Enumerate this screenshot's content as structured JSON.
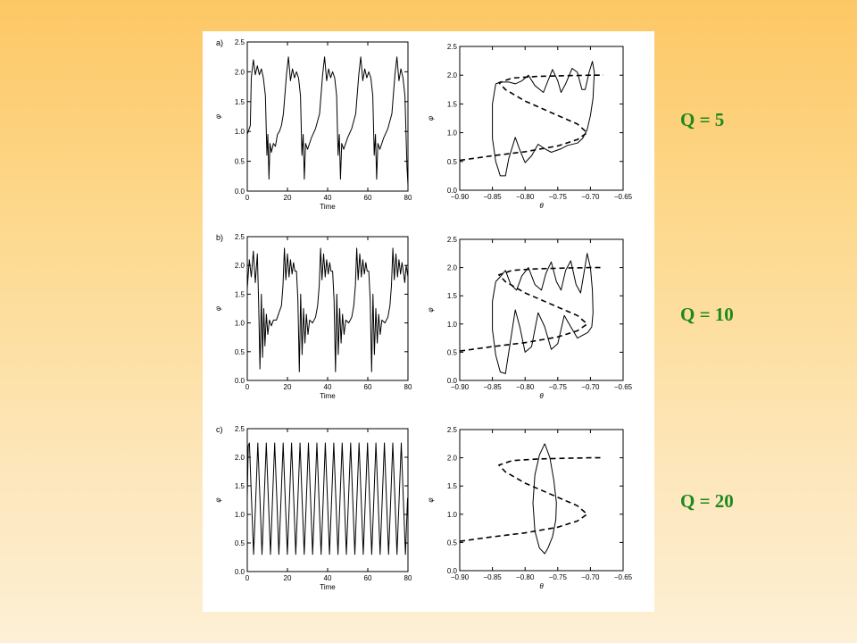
{
  "labels": {
    "q5": "Q = 5",
    "q10": "Q = 10",
    "q20": "Q = 20"
  },
  "colors": {
    "background_top": "#fdc765",
    "background_bottom": "#fdf0d6",
    "label_green": "#1b8a1b",
    "figure_bg": "#ffffff",
    "ink": "#000000"
  },
  "chart_data": [
    {
      "panel": "a) time series",
      "type": "line",
      "panel_label": "a)",
      "xlabel": "Time",
      "ylabel": "φ",
      "xlim": [
        0,
        80
      ],
      "ylim": [
        0,
        2.5
      ],
      "xticks": [
        "0",
        "20",
        "40",
        "60",
        "80"
      ],
      "yticks": [
        "0.0",
        "0.5",
        "1.0",
        "1.5",
        "2.0",
        "2.5"
      ],
      "series": [
        {
          "x": [
            0,
            1.5,
            2,
            3,
            4,
            5,
            6,
            7,
            8,
            9,
            9.8,
            10.2,
            10.8,
            11.3,
            12,
            13,
            14,
            15,
            16,
            17,
            18,
            19.5,
            20.5,
            21.5,
            22.5,
            23.5,
            24.5,
            25.5,
            26.5,
            27.2,
            27.8,
            28.4,
            29,
            30,
            32,
            34,
            36,
            37.5,
            38.5,
            39.5,
            40.5,
            41.5,
            42.5,
            43.5,
            44.5,
            45.2,
            45.8,
            46.4,
            47,
            48,
            50,
            52,
            54,
            55.5,
            56.5,
            57.5,
            58.5,
            59.5,
            60.5,
            61.5,
            62.5,
            63.2,
            63.8,
            64.4,
            65,
            66,
            68,
            70,
            72,
            73.5,
            74.5,
            75.5,
            76.5,
            77.5,
            78.5,
            79.5,
            80
          ],
          "y": [
            0.95,
            1.1,
            1.9,
            2.2,
            1.95,
            2.1,
            1.95,
            2.05,
            1.9,
            1.6,
            0.6,
            0.95,
            0.2,
            0.8,
            0.65,
            0.8,
            0.75,
            0.95,
            1.0,
            1.1,
            1.3,
            1.95,
            2.25,
            1.85,
            2.05,
            1.9,
            2.0,
            1.9,
            1.6,
            0.6,
            0.95,
            0.2,
            0.8,
            0.7,
            0.9,
            1.05,
            1.3,
            1.95,
            2.25,
            1.85,
            2.05,
            1.9,
            2.0,
            1.9,
            1.6,
            0.6,
            0.95,
            0.2,
            0.8,
            0.7,
            0.9,
            1.05,
            1.3,
            1.95,
            2.25,
            1.85,
            2.05,
            1.9,
            2.0,
            1.9,
            1.6,
            0.6,
            0.95,
            0.2,
            0.8,
            0.7,
            0.9,
            1.05,
            1.3,
            1.95,
            2.25,
            1.85,
            2.05,
            1.9,
            1.6,
            0.4,
            0.1
          ]
        }
      ]
    },
    {
      "panel": "a) phase portrait",
      "type": "line",
      "xlabel": "θ",
      "ylabel": "φ",
      "xlim": [
        -0.9,
        -0.65
      ],
      "ylim": [
        0,
        2.5
      ],
      "xticks": [
        "−0.90",
        "−0.85",
        "−0.80",
        "−0.75",
        "−0.70",
        "−0.65"
      ],
      "yticks": [
        "0.0",
        "0.5",
        "1.0",
        "1.5",
        "2.0",
        "2.5"
      ],
      "series": [
        {
          "style": "dashed",
          "x": [
            -0.9,
            -0.85,
            -0.8,
            -0.75,
            -0.72,
            -0.705,
            -0.72,
            -0.76,
            -0.8,
            -0.83,
            -0.84,
            -0.82,
            -0.78,
            -0.74,
            -0.7,
            -0.68
          ],
          "y": [
            0.52,
            0.6,
            0.67,
            0.77,
            0.88,
            1.0,
            1.15,
            1.35,
            1.55,
            1.75,
            1.87,
            1.95,
            1.98,
            1.99,
            2.0,
            2.0
          ]
        },
        {
          "style": "solid",
          "x": [
            -0.845,
            -0.85,
            -0.85,
            -0.845,
            -0.838,
            -0.83,
            -0.825,
            -0.815,
            -0.808,
            -0.8,
            -0.79,
            -0.78,
            -0.77,
            -0.76,
            -0.745,
            -0.735,
            -0.72,
            -0.712,
            -0.705,
            -0.7,
            -0.696,
            -0.695,
            -0.694,
            -0.697,
            -0.702,
            -0.708,
            -0.713,
            -0.72,
            -0.728,
            -0.738,
            -0.745,
            -0.75,
            -0.758,
            -0.765,
            -0.772,
            -0.785,
            -0.795,
            -0.805,
            -0.815,
            -0.825,
            -0.833,
            -0.84,
            -0.845
          ],
          "y": [
            1.85,
            1.5,
            0.9,
            0.5,
            0.25,
            0.25,
            0.55,
            0.92,
            0.7,
            0.48,
            0.6,
            0.8,
            0.72,
            0.66,
            0.72,
            0.78,
            0.82,
            0.9,
            1.05,
            1.3,
            1.6,
            1.85,
            2.05,
            2.24,
            2.05,
            1.75,
            1.75,
            2.05,
            2.12,
            1.85,
            1.7,
            1.9,
            2.1,
            1.9,
            1.7,
            1.82,
            2.0,
            1.9,
            1.85,
            1.88,
            1.88,
            1.87,
            1.85
          ]
        }
      ]
    },
    {
      "panel": "b) time series",
      "type": "line",
      "panel_label": "b)",
      "xlabel": "Time",
      "ylabel": "φ",
      "xlim": [
        0,
        80
      ],
      "ylim": [
        0,
        2.5
      ],
      "xticks": [
        "0",
        "20",
        "40",
        "60",
        "80"
      ],
      "yticks": [
        "0.0",
        "0.5",
        "1.0",
        "1.5",
        "2.0",
        "2.5"
      ],
      "series": [
        {
          "x": [
            0,
            1,
            2,
            3,
            4,
            5,
            5.7,
            6.3,
            7,
            7.6,
            8.2,
            8.8,
            9.5,
            10.2,
            11,
            12,
            13,
            14.5,
            16,
            17,
            17.8,
            18.5,
            19.2,
            20,
            20.8,
            21.5,
            22.3,
            23,
            23.7,
            24.5,
            25.2,
            25.9,
            26.6,
            27.3,
            28,
            28.7,
            29.4,
            30.2,
            31,
            32.5,
            34,
            35,
            35.8,
            36.5,
            37.2,
            38,
            38.8,
            39.5,
            40.3,
            41,
            41.7,
            42.5,
            43.2,
            43.9,
            44.6,
            45.3,
            46,
            46.7,
            47.4,
            48.2,
            49,
            50.5,
            52,
            53,
            53.8,
            54.5,
            55.2,
            56,
            56.8,
            57.5,
            58.3,
            59,
            59.7,
            60.5,
            61.2,
            61.9,
            62.6,
            63.3,
            64,
            64.7,
            65.4,
            66.2,
            67,
            68.5,
            70,
            71,
            71.8,
            72.5,
            73.2,
            74,
            74.8,
            75.5,
            76.3,
            77,
            77.7,
            78.4,
            79.1,
            80
          ],
          "y": [
            1.6,
            2.1,
            1.8,
            2.25,
            1.7,
            2.2,
            1.3,
            0.2,
            1.5,
            0.4,
            1.25,
            0.6,
            1.15,
            0.8,
            1.05,
            0.95,
            1.05,
            1.05,
            1.2,
            1.3,
            1.65,
            2.3,
            1.75,
            2.2,
            1.8,
            2.1,
            1.85,
            2.05,
            1.9,
            1.9,
            1.4,
            0.15,
            1.5,
            0.45,
            1.25,
            0.65,
            1.15,
            0.8,
            1.05,
            1.0,
            1.1,
            1.3,
            1.65,
            2.3,
            1.75,
            2.2,
            1.8,
            2.1,
            1.85,
            2.05,
            1.9,
            1.9,
            1.4,
            0.15,
            1.5,
            0.45,
            1.25,
            0.65,
            1.15,
            0.8,
            1.05,
            1.0,
            1.1,
            1.3,
            1.65,
            2.3,
            1.75,
            2.2,
            1.8,
            2.1,
            1.85,
            2.05,
            1.9,
            1.9,
            1.4,
            0.15,
            1.5,
            0.45,
            1.25,
            0.65,
            1.15,
            0.8,
            1.05,
            1.0,
            1.1,
            1.3,
            1.65,
            2.3,
            1.75,
            2.2,
            1.8,
            2.1,
            1.85,
            2.05,
            1.9,
            1.7,
            2.0,
            1.8
          ]
        }
      ]
    },
    {
      "panel": "b) phase portrait",
      "type": "line",
      "xlabel": "θ",
      "ylabel": "φ",
      "xlim": [
        -0.9,
        -0.65
      ],
      "ylim": [
        0,
        2.5
      ],
      "xticks": [
        "−0.90",
        "−0.85",
        "−0.80",
        "−0.75",
        "−0.70",
        "−0.65"
      ],
      "yticks": [
        "0.0",
        "0.5",
        "1.0",
        "1.5",
        "2.0",
        "2.5"
      ],
      "series": [
        {
          "style": "dashed",
          "x": [
            -0.9,
            -0.85,
            -0.8,
            -0.75,
            -0.72,
            -0.705,
            -0.72,
            -0.76,
            -0.8,
            -0.83,
            -0.84,
            -0.82,
            -0.78,
            -0.74,
            -0.7,
            -0.68
          ],
          "y": [
            0.52,
            0.6,
            0.67,
            0.77,
            0.88,
            1.0,
            1.15,
            1.35,
            1.55,
            1.75,
            1.87,
            1.95,
            1.98,
            1.99,
            2.0,
            2.0
          ]
        },
        {
          "style": "solid",
          "x": [
            -0.845,
            -0.85,
            -0.85,
            -0.845,
            -0.838,
            -0.83,
            -0.825,
            -0.815,
            -0.808,
            -0.8,
            -0.79,
            -0.78,
            -0.77,
            -0.76,
            -0.75,
            -0.74,
            -0.73,
            -0.72,
            -0.712,
            -0.704,
            -0.698,
            -0.696,
            -0.697,
            -0.7,
            -0.705,
            -0.71,
            -0.715,
            -0.722,
            -0.73,
            -0.738,
            -0.745,
            -0.752,
            -0.76,
            -0.768,
            -0.775,
            -0.785,
            -0.795,
            -0.805,
            -0.813,
            -0.822,
            -0.83,
            -0.837,
            -0.845
          ],
          "y": [
            1.75,
            1.4,
            0.9,
            0.45,
            0.15,
            0.12,
            0.5,
            1.25,
            0.95,
            0.5,
            0.6,
            1.2,
            0.95,
            0.55,
            0.65,
            1.15,
            0.95,
            0.75,
            0.8,
            0.85,
            0.95,
            1.2,
            1.6,
            2.0,
            2.25,
            1.9,
            1.55,
            1.7,
            2.12,
            1.95,
            1.6,
            1.75,
            2.1,
            1.9,
            1.6,
            1.7,
            2.0,
            1.85,
            1.6,
            1.7,
            1.95,
            1.85,
            1.75
          ]
        }
      ]
    },
    {
      "panel": "c) time series",
      "type": "line",
      "panel_label": "c)",
      "xlabel": "Time",
      "ylabel": "φ",
      "xlim": [
        0,
        80
      ],
      "ylim": [
        0,
        2.5
      ],
      "xticks": [
        "0",
        "20",
        "40",
        "60",
        "80"
      ],
      "yticks": [
        "0.0",
        "0.5",
        "1.0",
        "1.5",
        "2.0",
        "2.5"
      ],
      "series": [
        {
          "oscillation": "periodic",
          "period": 4.2,
          "min": 0.3,
          "max": 2.25,
          "cycles": 19,
          "x": [
            0,
            0.5,
            1.05,
            2.1,
            3.15,
            4.2,
            5.25,
            6.3,
            7.35,
            8.4,
            9.45,
            10.5,
            11.55,
            12.6,
            13.65,
            14.7,
            15.75,
            16.8,
            17.85,
            18.9,
            19.95,
            21.0,
            22.05,
            23.1,
            24.15,
            25.2,
            26.25,
            27.3,
            28.35,
            29.4,
            30.45,
            31.5,
            32.55,
            33.6,
            34.65,
            35.7,
            36.75,
            37.8,
            38.85,
            39.9,
            40.95,
            42.0,
            43.05,
            44.1,
            45.15,
            46.2,
            47.25,
            48.3,
            49.35,
            50.4,
            51.45,
            52.5,
            53.55,
            54.6,
            55.65,
            56.7,
            57.75,
            58.8,
            59.85,
            60.9,
            61.95,
            63.0,
            64.05,
            65.1,
            66.15,
            67.2,
            68.25,
            69.3,
            70.35,
            71.4,
            72.45,
            73.5,
            74.55,
            75.6,
            76.65,
            77.7,
            78.75,
            79.8,
            80
          ],
          "y": [
            1.3,
            2.2,
            2.25,
            1.27,
            0.3,
            1.27,
            2.25,
            1.27,
            0.3,
            1.27,
            2.25,
            1.27,
            0.3,
            1.27,
            2.25,
            1.27,
            0.3,
            1.27,
            2.25,
            1.27,
            0.3,
            1.27,
            2.25,
            1.27,
            0.3,
            1.27,
            2.25,
            1.27,
            0.3,
            1.27,
            2.25,
            1.27,
            0.3,
            1.27,
            2.25,
            1.27,
            0.3,
            1.27,
            2.25,
            1.27,
            0.3,
            1.27,
            2.25,
            1.27,
            0.3,
            1.27,
            2.25,
            1.27,
            0.3,
            1.27,
            2.25,
            1.27,
            0.3,
            1.27,
            2.25,
            1.27,
            0.3,
            1.27,
            2.25,
            1.27,
            0.3,
            1.27,
            2.25,
            1.27,
            0.3,
            1.27,
            2.25,
            1.27,
            0.3,
            1.27,
            2.25,
            1.27,
            0.3,
            1.27,
            2.25,
            1.27,
            0.3,
            1.27,
            1.3
          ]
        }
      ]
    },
    {
      "panel": "c) phase portrait",
      "type": "line",
      "xlabel": "θ",
      "ylabel": "φ",
      "xlim": [
        -0.9,
        -0.65
      ],
      "ylim": [
        0,
        2.5
      ],
      "xticks": [
        "−0.90",
        "−0.85",
        "−0.80",
        "−0.75",
        "−0.70",
        "−0.65"
      ],
      "yticks": [
        "0.0",
        "0.5",
        "1.0",
        "1.5",
        "2.0",
        "2.5"
      ],
      "series": [
        {
          "style": "dashed",
          "x": [
            -0.9,
            -0.85,
            -0.8,
            -0.75,
            -0.72,
            -0.705,
            -0.72,
            -0.76,
            -0.8,
            -0.83,
            -0.84,
            -0.82,
            -0.78,
            -0.74,
            -0.7,
            -0.68
          ],
          "y": [
            0.52,
            0.6,
            0.67,
            0.77,
            0.88,
            1.0,
            1.15,
            1.35,
            1.55,
            1.75,
            1.87,
            1.95,
            1.98,
            1.99,
            2.0,
            2.0
          ]
        },
        {
          "style": "solid",
          "x": [
            -0.77,
            -0.762,
            -0.756,
            -0.752,
            -0.753,
            -0.758,
            -0.765,
            -0.77,
            -0.778,
            -0.785,
            -0.788,
            -0.785,
            -0.778,
            -0.77
          ],
          "y": [
            2.25,
            2.0,
            1.6,
            1.2,
            0.9,
            0.6,
            0.4,
            0.3,
            0.4,
            0.7,
            1.2,
            1.7,
            2.05,
            2.25
          ]
        }
      ]
    }
  ]
}
